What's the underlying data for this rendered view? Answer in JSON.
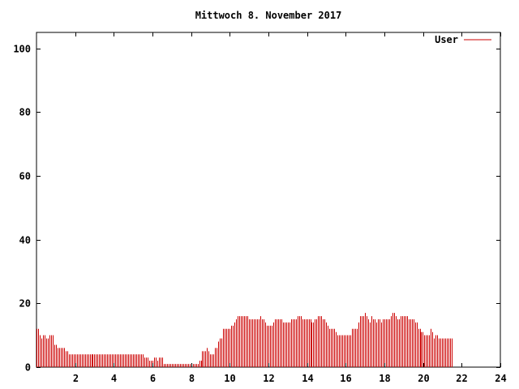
{
  "chart_data": {
    "type": "bar",
    "title": "Mittwoch 8. November 2017",
    "xlabel": "",
    "ylabel": "",
    "xlim": [
      0,
      24
    ],
    "ylim": [
      0,
      105
    ],
    "xticks": [
      "2",
      "4",
      "6",
      "8",
      "10",
      "12",
      "14",
      "16",
      "18",
      "20",
      "22",
      "24"
    ],
    "yticks": [
      "0",
      "20",
      "40",
      "60",
      "80",
      "100"
    ],
    "grid": false,
    "legend_position": "top-right",
    "colors": {
      "series": "#cc0000",
      "axis": "#000000",
      "background": "#ffffff"
    },
    "series": [
      {
        "name": "User",
        "interval_hours": 0.0833,
        "values": [
          12,
          12,
          10,
          9,
          10,
          10,
          9,
          9,
          10,
          10,
          10,
          7,
          7,
          6,
          6,
          6,
          6,
          6,
          5,
          5,
          4,
          4,
          4,
          4,
          4,
          4,
          4,
          4,
          4,
          4,
          4,
          4,
          4,
          4,
          4,
          4,
          4,
          4,
          4,
          4,
          4,
          4,
          4,
          4,
          4,
          4,
          4,
          4,
          4,
          4,
          4,
          4,
          4,
          4,
          4,
          4,
          4,
          4,
          4,
          4,
          4,
          4,
          4,
          4,
          4,
          4,
          4,
          3,
          3,
          3,
          2,
          2,
          2,
          3,
          3,
          2,
          3,
          3,
          3,
          1,
          1,
          1,
          1,
          1,
          1,
          1,
          1,
          1,
          1,
          1,
          1,
          1,
          1,
          1,
          1,
          1,
          1,
          1,
          1,
          1,
          1,
          2,
          2,
          5,
          5,
          5,
          6,
          5,
          4,
          4,
          4,
          6,
          6,
          8,
          9,
          9,
          12,
          12,
          12,
          12,
          12,
          13,
          13,
          14,
          15,
          16,
          16,
          16,
          16,
          16,
          16,
          16,
          15,
          15,
          15,
          15,
          15,
          15,
          15,
          16,
          15,
          15,
          14,
          13,
          13,
          13,
          13,
          14,
          15,
          15,
          15,
          15,
          15,
          14,
          14,
          14,
          14,
          14,
          15,
          15,
          15,
          15,
          16,
          16,
          16,
          15,
          15,
          15,
          15,
          15,
          15,
          14,
          14,
          15,
          15,
          16,
          16,
          16,
          15,
          15,
          14,
          13,
          12,
          12,
          12,
          12,
          11,
          10,
          10,
          10,
          10,
          10,
          10,
          10,
          10,
          10,
          12,
          12,
          12,
          12,
          14,
          16,
          16,
          16,
          17,
          16,
          15,
          14,
          16,
          15,
          15,
          14,
          15,
          15,
          14,
          15,
          15,
          15,
          15,
          15,
          16,
          17,
          17,
          16,
          15,
          15,
          16,
          16,
          16,
          16,
          16,
          15,
          15,
          15,
          15,
          14,
          14,
          12,
          12,
          11,
          11,
          10,
          10,
          10,
          10,
          12,
          11,
          9,
          10,
          10,
          9,
          9,
          9,
          9,
          9,
          9,
          9,
          9,
          9
        ]
      }
    ]
  }
}
